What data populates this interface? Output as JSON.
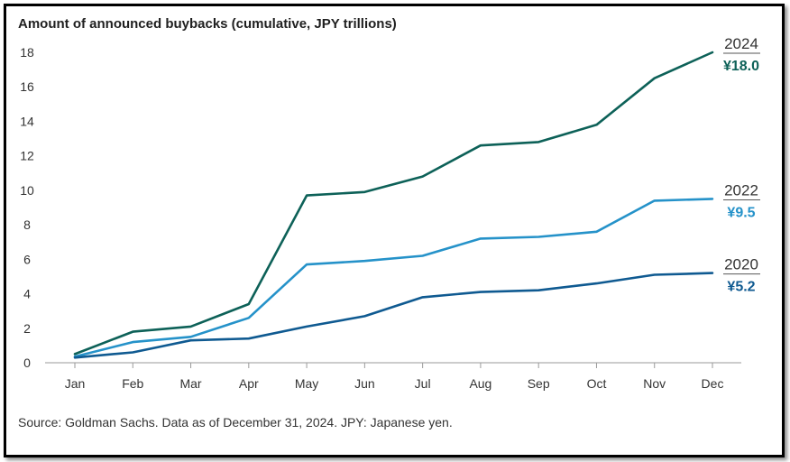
{
  "chart_data": {
    "type": "line",
    "title": "Amount of announced buybacks (cumulative, JPY trillions)",
    "source": "Source: Goldman Sachs. Data as of December 31, 2024. JPY: Japanese yen.",
    "categories": [
      "Jan",
      "Feb",
      "Mar",
      "Apr",
      "May",
      "Jun",
      "Jul",
      "Aug",
      "Sep",
      "Oct",
      "Nov",
      "Dec"
    ],
    "ylim": [
      0,
      18
    ],
    "yticks": [
      0,
      2,
      4,
      6,
      8,
      10,
      12,
      14,
      16,
      18
    ],
    "grid": false,
    "series": [
      {
        "name": "2024",
        "end_label": "¥18.0",
        "color": "#0d6158",
        "values": [
          0.5,
          1.8,
          2.1,
          3.4,
          9.7,
          9.9,
          10.8,
          12.6,
          12.8,
          13.8,
          16.5,
          18.0
        ]
      },
      {
        "name": "2022",
        "end_label": "¥9.5",
        "color": "#2592c9",
        "values": [
          0.35,
          1.2,
          1.5,
          2.6,
          5.7,
          5.9,
          6.2,
          7.2,
          7.3,
          7.6,
          9.4,
          9.5
        ]
      },
      {
        "name": "2020",
        "end_label": "¥5.2",
        "color": "#0f5a91",
        "values": [
          0.3,
          0.6,
          1.3,
          1.4,
          2.1,
          2.7,
          3.8,
          4.1,
          4.2,
          4.6,
          5.1,
          5.2
        ]
      }
    ]
  }
}
